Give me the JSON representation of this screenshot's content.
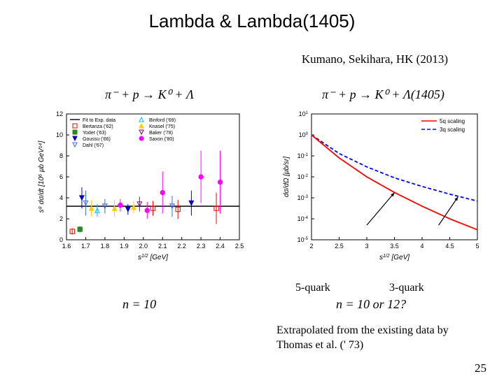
{
  "title": "Lambda & Lambda(1405)",
  "citation": "Kumano, Sekihara, HK (2013)",
  "reaction_left": "π⁻ + p → K⁰ + Λ",
  "reaction_right": "π⁻ + p → K⁰ + Λ(1405)",
  "n_left": "n = 10",
  "n_right": "n = 10 or 12?",
  "label_5q": "5-quark",
  "label_3q": "3-quark",
  "extrapolation": "Extrapolated from the existing data by Thomas et al. (' 73)",
  "pagenum": "25",
  "left_chart": {
    "type": "scatter",
    "xlabel": "s^{1/2}  [GeV]",
    "ylabel": "s^{8} dσ/dt  [10^{6} μb GeV^{14}]",
    "xlim": [
      1.6,
      2.5
    ],
    "xtick_step": 0.1,
    "ylim": [
      0,
      12
    ],
    "ytick_step": 2,
    "background_color": "#ffffff",
    "axis_color": "#000000",
    "tick_fontsize": 9,
    "label_fontsize": 10,
    "legend_items": [
      {
        "label": "Fit to Exp. data",
        "color": "#000000",
        "style": "line"
      },
      {
        "label": "Bertanza ('62)",
        "color": "#ff0000",
        "marker": "square-open"
      },
      {
        "label": "Yoder ('63)",
        "color": "#228b22",
        "marker": "square-fill"
      },
      {
        "label": "Goussu ('66)",
        "color": "#0000cc",
        "marker": "triangle-down-fill"
      },
      {
        "label": "Dahl ('67)",
        "color": "#4169e1",
        "marker": "triangle-down-open"
      },
      {
        "label": "Binford ('69)",
        "color": "#00bfff",
        "marker": "triangle-up-open"
      },
      {
        "label": "Knasel ('75)",
        "color": "#ffcc00",
        "marker": "triangle-up-fill"
      },
      {
        "label": "Baker ('78)",
        "color": "#800080",
        "marker": "triangle-down-open"
      },
      {
        "label": "Saxon ('80)",
        "color": "#ff00ff",
        "marker": "circle-fill"
      }
    ],
    "legend_fontsize": 7,
    "fit_line_y": 3.2,
    "data_points": [
      {
        "x": 1.63,
        "y": 0.8,
        "err": 0.3,
        "color": "#ff0000",
        "marker": "square-open"
      },
      {
        "x": 1.67,
        "y": 1.0,
        "err": 0.3,
        "color": "#228b22",
        "marker": "square-fill"
      },
      {
        "x": 1.68,
        "y": 4.0,
        "err": 1.0,
        "color": "#0000cc",
        "marker": "triangle-down-fill"
      },
      {
        "x": 1.7,
        "y": 3.5,
        "err": 1.2,
        "color": "#4169e1",
        "marker": "triangle-down-open"
      },
      {
        "x": 1.73,
        "y": 3.0,
        "err": 0.8,
        "color": "#ffcc00",
        "marker": "triangle-up-fill"
      },
      {
        "x": 1.76,
        "y": 2.8,
        "err": 0.6,
        "color": "#00bfff",
        "marker": "triangle-up-open"
      },
      {
        "x": 1.8,
        "y": 3.2,
        "err": 0.7,
        "color": "#4169e1",
        "marker": "triangle-down-open"
      },
      {
        "x": 1.85,
        "y": 3.0,
        "err": 0.8,
        "color": "#ffcc00",
        "marker": "triangle-up-fill"
      },
      {
        "x": 1.88,
        "y": 3.3,
        "err": 0.6,
        "color": "#ff00ff",
        "marker": "circle-fill"
      },
      {
        "x": 1.92,
        "y": 2.9,
        "err": 0.5,
        "color": "#0000cc",
        "marker": "triangle-down-fill"
      },
      {
        "x": 1.95,
        "y": 3.1,
        "err": 0.6,
        "color": "#ffcc00",
        "marker": "triangle-up-fill"
      },
      {
        "x": 1.98,
        "y": 3.4,
        "err": 0.7,
        "color": "#800080",
        "marker": "triangle-down-open"
      },
      {
        "x": 2.02,
        "y": 2.8,
        "err": 0.8,
        "color": "#ff00ff",
        "marker": "circle-fill"
      },
      {
        "x": 2.05,
        "y": 3.0,
        "err": 0.7,
        "color": "#ff0000",
        "marker": "square-open"
      },
      {
        "x": 2.1,
        "y": 4.5,
        "err": 2.0,
        "color": "#ff00ff",
        "marker": "circle-fill"
      },
      {
        "x": 2.15,
        "y": 3.2,
        "err": 1.0,
        "color": "#4169e1",
        "marker": "triangle-down-open"
      },
      {
        "x": 2.18,
        "y": 2.9,
        "err": 0.9,
        "color": "#ff0000",
        "marker": "square-open"
      },
      {
        "x": 2.25,
        "y": 3.5,
        "err": 1.2,
        "color": "#0000cc",
        "marker": "triangle-down-fill"
      },
      {
        "x": 2.3,
        "y": 6.0,
        "err": 2.5,
        "color": "#ff00ff",
        "marker": "circle-fill"
      },
      {
        "x": 2.38,
        "y": 3.0,
        "err": 1.5,
        "color": "#ff0000",
        "marker": "square-open"
      },
      {
        "x": 2.4,
        "y": 5.5,
        "err": 3.0,
        "color": "#ff00ff",
        "marker": "circle-fill"
      }
    ]
  },
  "right_chart": {
    "type": "line-log",
    "xlabel": "s^{1/2}  [GeV]",
    "ylabel": "dσ/dΩ  [μb/sr]",
    "xlim": [
      2,
      5
    ],
    "xtick_step": 0.5,
    "ylim_log": [
      -5,
      1
    ],
    "background_color": "#ffffff",
    "axis_color": "#000000",
    "tick_fontsize": 9,
    "label_fontsize": 10,
    "legend_items": [
      {
        "label": "5q scaling",
        "color": "#ff0000",
        "style": "solid"
      },
      {
        "label": "3q scaling",
        "color": "#0000ff",
        "style": "dashed"
      }
    ],
    "legend_fontsize": 8,
    "curve_5q": [
      {
        "x": 2.0,
        "y": 1.0
      },
      {
        "x": 2.5,
        "y": 0.08
      },
      {
        "x": 3.0,
        "y": 0.01
      },
      {
        "x": 3.5,
        "y": 0.0018
      },
      {
        "x": 4.0,
        "y": 0.0004
      },
      {
        "x": 4.5,
        "y": 0.0001
      },
      {
        "x": 5.0,
        "y": 3e-05
      }
    ],
    "curve_3q": [
      {
        "x": 2.0,
        "y": 1.0
      },
      {
        "x": 2.5,
        "y": 0.13
      },
      {
        "x": 3.0,
        "y": 0.03
      },
      {
        "x": 3.5,
        "y": 0.009
      },
      {
        "x": 4.0,
        "y": 0.0035
      },
      {
        "x": 4.5,
        "y": 0.0015
      },
      {
        "x": 5.0,
        "y": 0.0007
      }
    ],
    "arrows": [
      {
        "from_x": 3.0,
        "from_y_log": -4.3,
        "to_x": 3.5,
        "to_y_log": -2.75
      },
      {
        "from_x": 4.3,
        "from_y_log": -4.3,
        "to_x": 4.65,
        "to_y_log": -2.95
      }
    ]
  }
}
